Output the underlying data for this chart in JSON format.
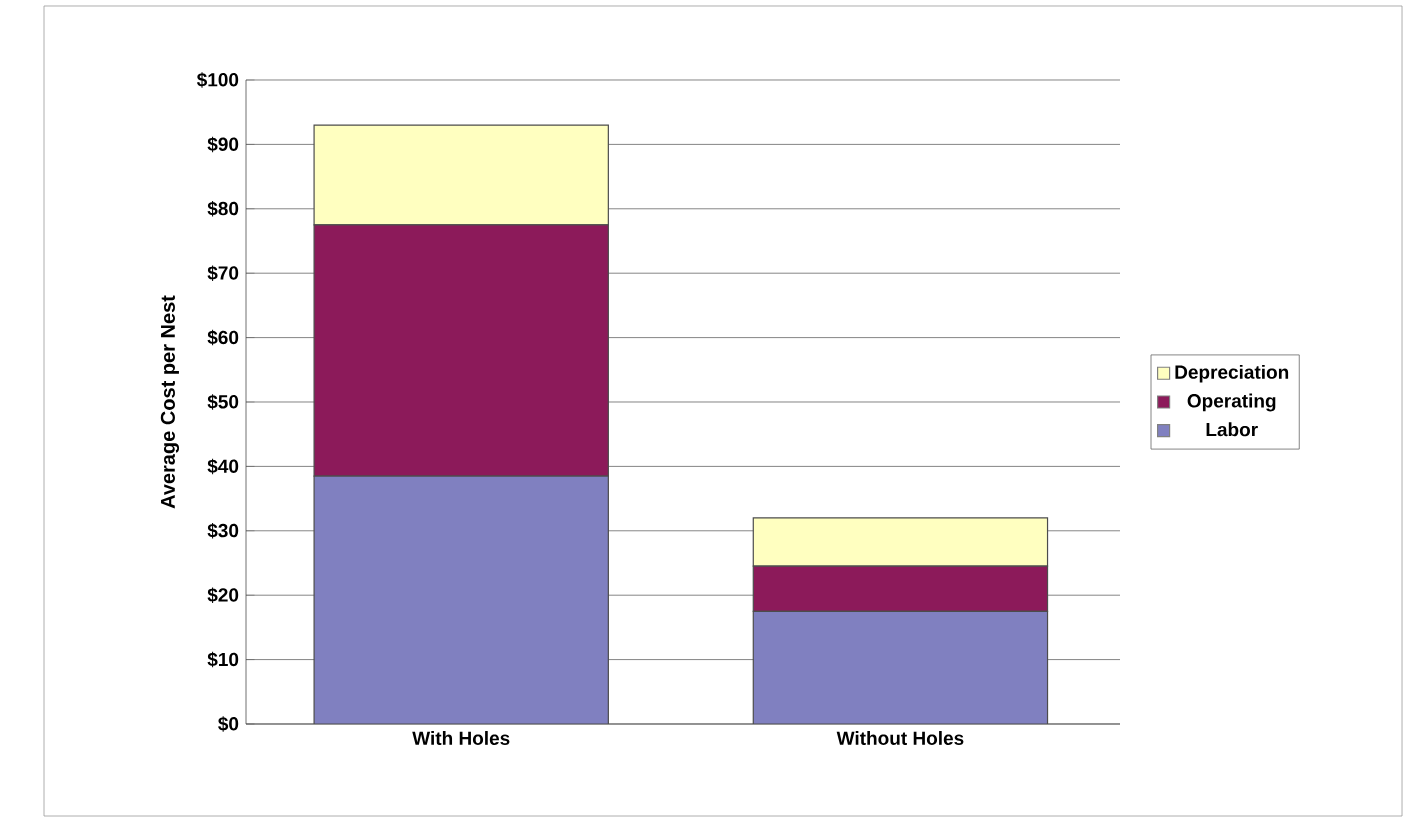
{
  "chart_data": {
    "type": "bar",
    "stacked": true,
    "ylabel": "Average Cost per Nest",
    "categories": [
      "With Holes",
      "Without Holes"
    ],
    "series": [
      {
        "name": "Labor",
        "color": "#8080c0",
        "values": [
          38.5,
          17.5
        ]
      },
      {
        "name": "Operating",
        "color": "#8c1a5a",
        "values": [
          39,
          7
        ]
      },
      {
        "name": "Depreciation",
        "color": "#ffffc0",
        "values": [
          15.5,
          7.5
        ]
      }
    ],
    "ylim": [
      0,
      100
    ],
    "yticks": [
      {
        "value": 0,
        "label": "$0"
      },
      {
        "value": 10,
        "label": "$10"
      },
      {
        "value": 20,
        "label": "$20"
      },
      {
        "value": 30,
        "label": "$30"
      },
      {
        "value": 40,
        "label": "$40"
      },
      {
        "value": 50,
        "label": "$50"
      },
      {
        "value": 60,
        "label": "$60"
      },
      {
        "value": 70,
        "label": "$70"
      },
      {
        "value": 80,
        "label": "$80"
      },
      {
        "value": 90,
        "label": "$90"
      },
      {
        "value": 100,
        "label": "$100"
      }
    ],
    "grid": "y",
    "legend": "right"
  }
}
